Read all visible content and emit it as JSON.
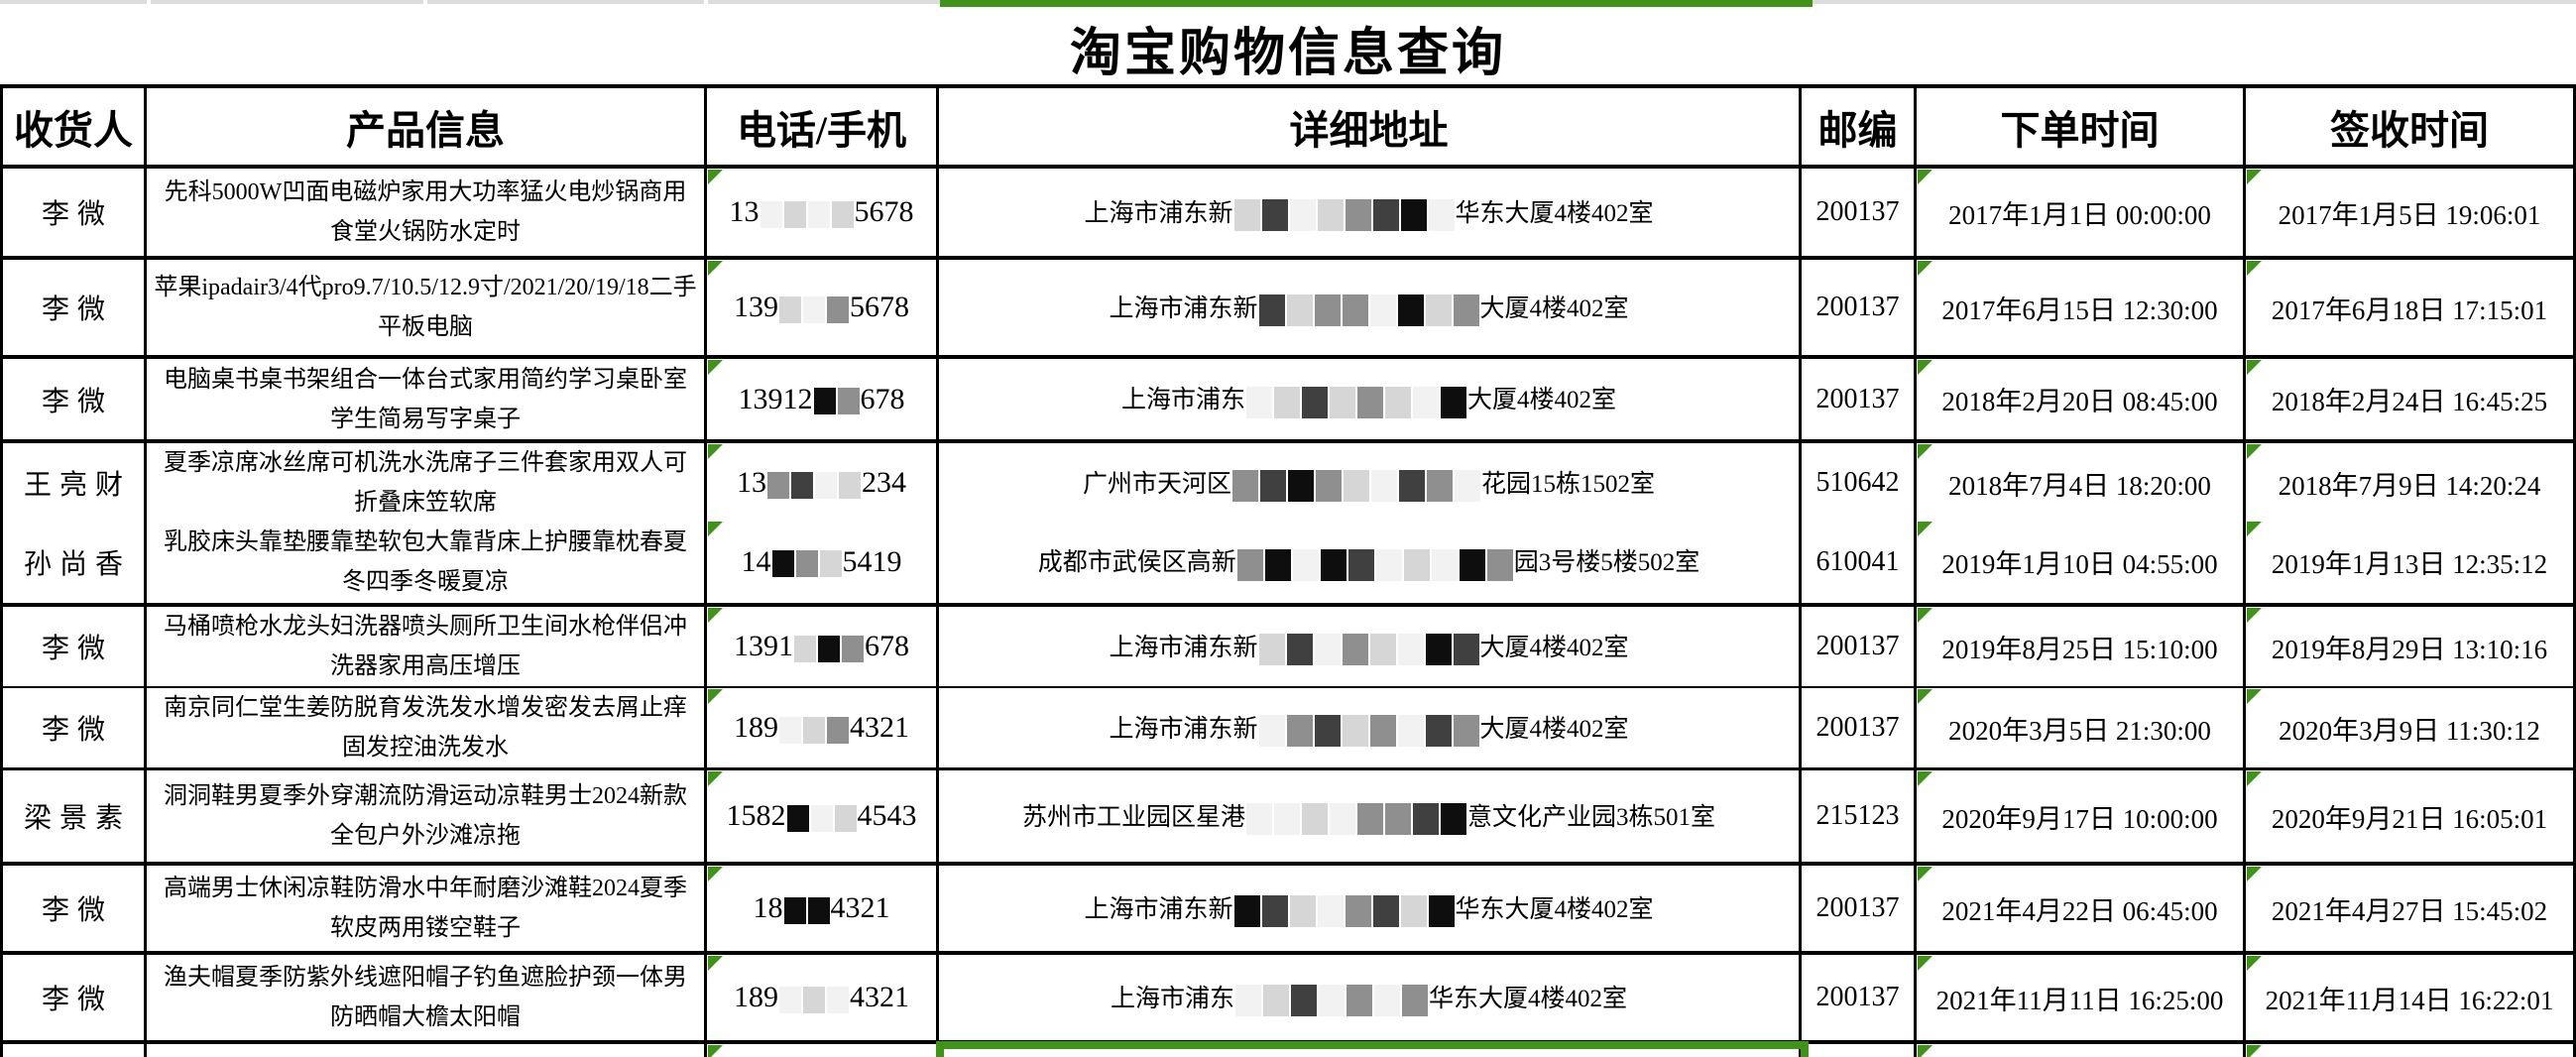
{
  "title": "淘宝购物信息查询",
  "columns": [
    {
      "key": "recipient",
      "label": "收货人"
    },
    {
      "key": "product",
      "label": "产品信息"
    },
    {
      "key": "phone",
      "label": "电话/手机"
    },
    {
      "key": "address",
      "label": "详细地址"
    },
    {
      "key": "postal",
      "label": "邮编"
    },
    {
      "key": "order_time",
      "label": "下单时间"
    },
    {
      "key": "sign_time",
      "label": "签收时间"
    }
  ],
  "indicators": {
    "triangle_columns": [
      "phone",
      "order_time",
      "sign_time"
    ]
  },
  "rows": [
    {
      "recipient": "李微",
      "product": "先科5000W凹面电磁炉家用大功率猛火电炒锅商用食堂火锅防水定时",
      "phone": {
        "prefix": "13",
        "masks": [
          "w",
          "l",
          "w",
          "l"
        ],
        "suffix": "5678"
      },
      "address": {
        "prefix": "上海市浦东新",
        "masks": [
          "l",
          "d",
          "w",
          "l",
          "g",
          "d",
          "b",
          "w"
        ],
        "suffix": "华东大厦4楼402室"
      },
      "postal": "200137",
      "order_time": "2017年1月1日 00:00:00",
      "sign_time": "2017年1月5日 19:06:01"
    },
    {
      "recipient": "李微",
      "product": "苹果ipadair3/4代pro9.7/10.5/12.9寸/2021/20/19/18二手平板电脑",
      "phone": {
        "prefix": "139",
        "masks": [
          "l",
          "w",
          "g"
        ],
        "suffix": "5678"
      },
      "address": {
        "prefix": "上海市浦东新",
        "masks": [
          "d",
          "l",
          "g",
          "g",
          "w",
          "b",
          "l",
          "g"
        ],
        "suffix": "大厦4楼402室"
      },
      "postal": "200137",
      "order_time": "2017年6月15日 12:30:00",
      "sign_time": "2017年6月18日 17:15:01"
    },
    {
      "recipient": "李微",
      "product": "电脑桌书桌书架组合一体台式家用简约学习桌卧室学生简易写字桌子",
      "phone": {
        "prefix": "13912",
        "masks": [
          "b",
          "g"
        ],
        "suffix": "678"
      },
      "address": {
        "prefix": "上海市浦东",
        "masks": [
          "w",
          "l",
          "d",
          "l",
          "g",
          "l",
          "w",
          "b"
        ],
        "suffix": "大厦4楼402室"
      },
      "postal": "200137",
      "order_time": "2018年2月20日 08:45:00",
      "sign_time": "2018年2月24日 16:45:25"
    },
    {
      "recipient": "王亮财",
      "product": "夏季凉席冰丝席可机洗水洗席子三件套家用双人可折叠床笠软席",
      "phone": {
        "prefix": "13",
        "masks": [
          "g",
          "d",
          "w",
          "l"
        ],
        "suffix": "234"
      },
      "address": {
        "prefix": "广州市天河区",
        "masks": [
          "g",
          "d",
          "b",
          "g",
          "l",
          "w",
          "d",
          "g",
          "w"
        ],
        "suffix": "花园15栋1502室"
      },
      "postal": "510642",
      "order_time": "2018年7月4日 18:20:00",
      "sign_time": "2018年7月9日 14:20:24"
    },
    {
      "recipient": "孙尚香",
      "product": "乳胶床头靠垫腰靠垫软包大靠背床上护腰靠枕春夏冬四季冬暖夏凉",
      "phone": {
        "prefix": "14",
        "masks": [
          "b",
          "g",
          "l"
        ],
        "suffix": "5419"
      },
      "address": {
        "prefix": "成都市武侯区高新",
        "masks": [
          "g",
          "b",
          "w",
          "b",
          "d",
          "w",
          "l",
          "w",
          "b",
          "g"
        ],
        "suffix": "园3号楼5楼502室"
      },
      "postal": "610041",
      "order_time": "2019年1月10日 04:55:00",
      "sign_time": "2019年1月13日 12:35:12"
    },
    {
      "recipient": "李微",
      "product": "马桶喷枪水龙头妇洗器喷头厕所卫生间水枪伴侣冲洗器家用高压增压",
      "phone": {
        "prefix": "1391",
        "masks": [
          "l",
          "b",
          "g"
        ],
        "suffix": "678"
      },
      "address": {
        "prefix": "上海市浦东新",
        "masks": [
          "l",
          "d",
          "w",
          "g",
          "l",
          "w",
          "b",
          "d"
        ],
        "suffix": "大厦4楼402室"
      },
      "postal": "200137",
      "order_time": "2019年8月25日 15:10:00",
      "sign_time": "2019年8月29日 13:10:16"
    },
    {
      "recipient": "李微",
      "product": "南京同仁堂生姜防脱育发洗发水增发密发去屑止痒固发控油洗发水",
      "phone": {
        "prefix": "189",
        "masks": [
          "w",
          "l",
          "g"
        ],
        "suffix": "4321"
      },
      "address": {
        "prefix": "上海市浦东新",
        "masks": [
          "w",
          "g",
          "d",
          "l",
          "g",
          "w",
          "d",
          "g"
        ],
        "suffix": "大厦4楼402室"
      },
      "postal": "200137",
      "order_time": "2020年3月5日 21:30:00",
      "sign_time": "2020年3月9日 11:30:12"
    },
    {
      "recipient": "梁景素",
      "product": "洞洞鞋男夏季外穿潮流防滑运动凉鞋男士2024新款全包户外沙滩凉拖",
      "phone": {
        "prefix": "1582",
        "masks": [
          "b",
          "w",
          "l"
        ],
        "suffix": "4543"
      },
      "address": {
        "prefix": "苏州市工业园区星港",
        "masks": [
          "w",
          "w",
          "l",
          "w",
          "g",
          "g",
          "d",
          "b"
        ],
        "suffix": "意文化产业园3栋501室"
      },
      "postal": "215123",
      "order_time": "2020年9月17日 10:00:00",
      "sign_time": "2020年9月21日 16:05:01"
    },
    {
      "recipient": "李微",
      "product": "高端男士休闲凉鞋防滑水中年耐磨沙滩鞋2024夏季软皮两用镂空鞋子",
      "phone": {
        "prefix": "18",
        "masks": [
          "b",
          "b"
        ],
        "suffix": "4321"
      },
      "address": {
        "prefix": "上海市浦东新",
        "masks": [
          "b",
          "d",
          "l",
          "w",
          "g",
          "d",
          "l",
          "b"
        ],
        "suffix": "华东大厦4楼402室"
      },
      "postal": "200137",
      "order_time": "2021年4月22日 06:45:00",
      "sign_time": "2021年4月27日 15:45:02"
    },
    {
      "recipient": "李微",
      "product": "渔夫帽夏季防紫外线遮阳帽子钓鱼遮脸护颈一体男防晒帽大檐太阳帽",
      "phone": {
        "prefix": "189",
        "masks": [
          "w",
          "l",
          "w"
        ],
        "suffix": "4321"
      },
      "address": {
        "prefix": "上海市浦东",
        "masks": [
          "w",
          "l",
          "d",
          "w",
          "g",
          "w",
          "g"
        ],
        "suffix": "华东大厦4楼402室"
      },
      "postal": "200137",
      "order_time": "2021年11月11日 16:25:00",
      "sign_time": "2021年11月14日 16:22:01"
    }
  ],
  "partial_row": {
    "triangle_columns": [
      "phone",
      "order_time",
      "sign_time"
    ],
    "selection_column": "address"
  },
  "colors": {
    "selection_green": "#3E9318",
    "grid_black": "#000000",
    "strip_gray": "#dcdcdc",
    "redaction": {
      "w": "#f2f2f2",
      "l": "#d6d6d6",
      "g": "#8f8f8f",
      "d": "#404040",
      "b": "#0e0e0e"
    }
  }
}
